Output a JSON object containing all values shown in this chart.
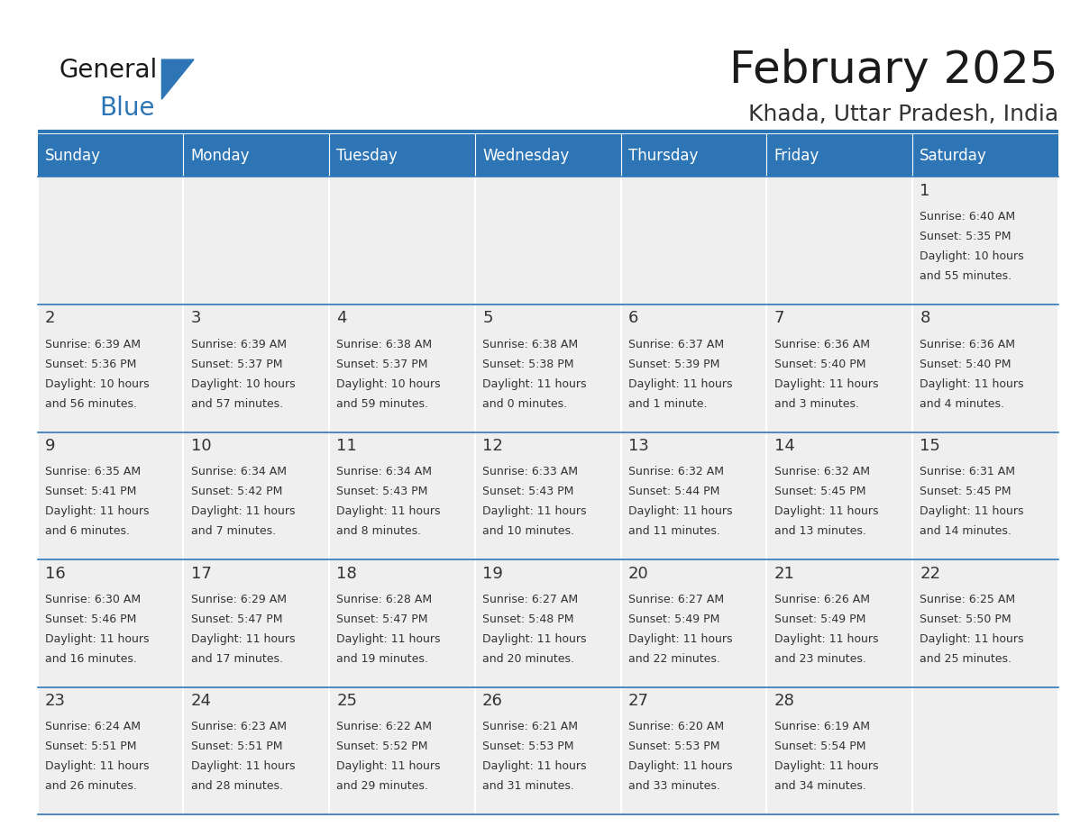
{
  "title": "February 2025",
  "subtitle": "Khada, Uttar Pradesh, India",
  "header_bg": "#2E75B6",
  "header_text": "#FFFFFF",
  "cell_bg": "#EFEFEF",
  "border_color": "#2E75B6",
  "border_light": "#CCCCCC",
  "day_headers": [
    "Sunday",
    "Monday",
    "Tuesday",
    "Wednesday",
    "Thursday",
    "Friday",
    "Saturday"
  ],
  "days": [
    {
      "day": 1,
      "col": 6,
      "row": 0,
      "sunrise": "6:40 AM",
      "sunset": "5:35 PM",
      "daylight": "10 hours and 55 minutes."
    },
    {
      "day": 2,
      "col": 0,
      "row": 1,
      "sunrise": "6:39 AM",
      "sunset": "5:36 PM",
      "daylight": "10 hours and 56 minutes."
    },
    {
      "day": 3,
      "col": 1,
      "row": 1,
      "sunrise": "6:39 AM",
      "sunset": "5:37 PM",
      "daylight": "10 hours and 57 minutes."
    },
    {
      "day": 4,
      "col": 2,
      "row": 1,
      "sunrise": "6:38 AM",
      "sunset": "5:37 PM",
      "daylight": "10 hours and 59 minutes."
    },
    {
      "day": 5,
      "col": 3,
      "row": 1,
      "sunrise": "6:38 AM",
      "sunset": "5:38 PM",
      "daylight": "11 hours and 0 minutes."
    },
    {
      "day": 6,
      "col": 4,
      "row": 1,
      "sunrise": "6:37 AM",
      "sunset": "5:39 PM",
      "daylight": "11 hours and 1 minute."
    },
    {
      "day": 7,
      "col": 5,
      "row": 1,
      "sunrise": "6:36 AM",
      "sunset": "5:40 PM",
      "daylight": "11 hours and 3 minutes."
    },
    {
      "day": 8,
      "col": 6,
      "row": 1,
      "sunrise": "6:36 AM",
      "sunset": "5:40 PM",
      "daylight": "11 hours and 4 minutes."
    },
    {
      "day": 9,
      "col": 0,
      "row": 2,
      "sunrise": "6:35 AM",
      "sunset": "5:41 PM",
      "daylight": "11 hours and 6 minutes."
    },
    {
      "day": 10,
      "col": 1,
      "row": 2,
      "sunrise": "6:34 AM",
      "sunset": "5:42 PM",
      "daylight": "11 hours and 7 minutes."
    },
    {
      "day": 11,
      "col": 2,
      "row": 2,
      "sunrise": "6:34 AM",
      "sunset": "5:43 PM",
      "daylight": "11 hours and 8 minutes."
    },
    {
      "day": 12,
      "col": 3,
      "row": 2,
      "sunrise": "6:33 AM",
      "sunset": "5:43 PM",
      "daylight": "11 hours and 10 minutes."
    },
    {
      "day": 13,
      "col": 4,
      "row": 2,
      "sunrise": "6:32 AM",
      "sunset": "5:44 PM",
      "daylight": "11 hours and 11 minutes."
    },
    {
      "day": 14,
      "col": 5,
      "row": 2,
      "sunrise": "6:32 AM",
      "sunset": "5:45 PM",
      "daylight": "11 hours and 13 minutes."
    },
    {
      "day": 15,
      "col": 6,
      "row": 2,
      "sunrise": "6:31 AM",
      "sunset": "5:45 PM",
      "daylight": "11 hours and 14 minutes."
    },
    {
      "day": 16,
      "col": 0,
      "row": 3,
      "sunrise": "6:30 AM",
      "sunset": "5:46 PM",
      "daylight": "11 hours and 16 minutes."
    },
    {
      "day": 17,
      "col": 1,
      "row": 3,
      "sunrise": "6:29 AM",
      "sunset": "5:47 PM",
      "daylight": "11 hours and 17 minutes."
    },
    {
      "day": 18,
      "col": 2,
      "row": 3,
      "sunrise": "6:28 AM",
      "sunset": "5:47 PM",
      "daylight": "11 hours and 19 minutes."
    },
    {
      "day": 19,
      "col": 3,
      "row": 3,
      "sunrise": "6:27 AM",
      "sunset": "5:48 PM",
      "daylight": "11 hours and 20 minutes."
    },
    {
      "day": 20,
      "col": 4,
      "row": 3,
      "sunrise": "6:27 AM",
      "sunset": "5:49 PM",
      "daylight": "11 hours and 22 minutes."
    },
    {
      "day": 21,
      "col": 5,
      "row": 3,
      "sunrise": "6:26 AM",
      "sunset": "5:49 PM",
      "daylight": "11 hours and 23 minutes."
    },
    {
      "day": 22,
      "col": 6,
      "row": 3,
      "sunrise": "6:25 AM",
      "sunset": "5:50 PM",
      "daylight": "11 hours and 25 minutes."
    },
    {
      "day": 23,
      "col": 0,
      "row": 4,
      "sunrise": "6:24 AM",
      "sunset": "5:51 PM",
      "daylight": "11 hours and 26 minutes."
    },
    {
      "day": 24,
      "col": 1,
      "row": 4,
      "sunrise": "6:23 AM",
      "sunset": "5:51 PM",
      "daylight": "11 hours and 28 minutes."
    },
    {
      "day": 25,
      "col": 2,
      "row": 4,
      "sunrise": "6:22 AM",
      "sunset": "5:52 PM",
      "daylight": "11 hours and 29 minutes."
    },
    {
      "day": 26,
      "col": 3,
      "row": 4,
      "sunrise": "6:21 AM",
      "sunset": "5:53 PM",
      "daylight": "11 hours and 31 minutes."
    },
    {
      "day": 27,
      "col": 4,
      "row": 4,
      "sunrise": "6:20 AM",
      "sunset": "5:53 PM",
      "daylight": "11 hours and 33 minutes."
    },
    {
      "day": 28,
      "col": 5,
      "row": 4,
      "sunrise": "6:19 AM",
      "sunset": "5:54 PM",
      "daylight": "11 hours and 34 minutes."
    }
  ],
  "num_rows": 5,
  "num_cols": 7,
  "logo_text1": "General",
  "logo_text2": "Blue",
  "logo_text1_color": "#1a1a1a",
  "logo_text2_color": "#2E75B6",
  "logo_triangle_color": "#2E75B6",
  "title_color": "#1a1a1a",
  "subtitle_color": "#333333",
  "cell_text_color": "#333333",
  "day_num_color": "#333333",
  "title_fontsize": 36,
  "subtitle_fontsize": 18,
  "header_fontsize": 12,
  "day_num_fontsize": 13,
  "cell_text_fontsize": 9
}
